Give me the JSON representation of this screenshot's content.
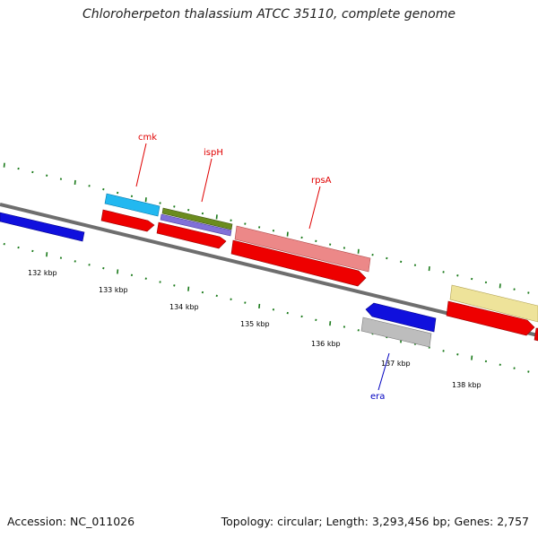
{
  "title": "Chloroherpeton thalassium ATCC 35110, complete genome",
  "footer": {
    "accession": "Accession: NC_011026",
    "summary": "Topology: circular; Length: 3,293,456 bp; Genes: 2,757"
  },
  "colors": {
    "backbone": "#7a7a7a",
    "tick": "#1a7a1a",
    "forward_label": "#e00000",
    "reverse_label": "#0000c0"
  },
  "kbp_labels": [
    "132 kbp",
    "133 kbp",
    "134 kbp",
    "135 kbp",
    "136 kbp",
    "137 kbp",
    "138 kbp"
  ],
  "gene_labels": [
    {
      "name": "cmk",
      "color": "#e00000"
    },
    {
      "name": "ispH",
      "color": "#e00000"
    },
    {
      "name": "rpsA",
      "color": "#e00000"
    },
    {
      "name": "era",
      "color": "#0000c0"
    }
  ]
}
